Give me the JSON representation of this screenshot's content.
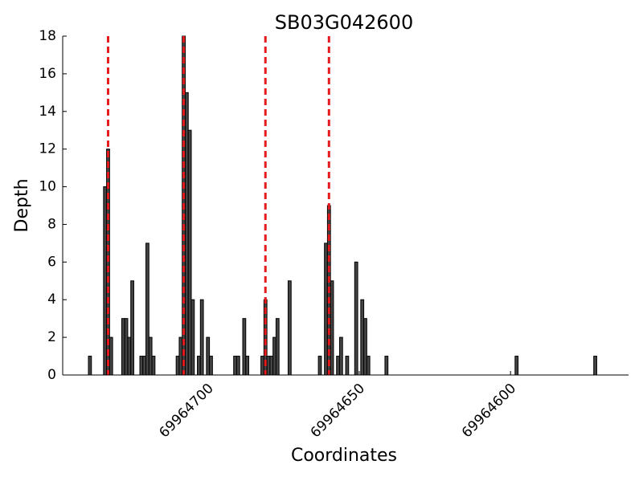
{
  "chart_data": {
    "type": "bar",
    "title": "SB03G042600",
    "x_label": "Coordinates",
    "y_label": "Depth",
    "x": [
      69964739,
      69964734,
      69964733,
      69964732,
      69964728,
      69964727,
      69964726,
      69964725,
      69964722,
      69964721,
      69964720,
      69964719,
      69964718,
      69964710,
      69964709,
      69964708,
      69964707,
      69964706,
      69964705,
      69964703,
      69964702,
      69964700,
      69964699,
      69964691,
      69964690,
      69964688,
      69964687,
      69964682,
      69964681,
      69964680,
      69964679,
      69964678,
      69964677,
      69964673,
      69964663,
      69964661,
      69964660,
      69964659,
      69964657,
      69964656,
      69964654,
      69964651,
      69964649,
      69964648,
      69964647,
      69964641,
      69964598,
      69964572
    ],
    "values": [
      1,
      10,
      12,
      2,
      3,
      3,
      2,
      5,
      1,
      1,
      7,
      2,
      1,
      1,
      2,
      18,
      15,
      13,
      4,
      1,
      4,
      2,
      1,
      1,
      1,
      3,
      1,
      1,
      4,
      1,
      1,
      2,
      3,
      5,
      1,
      7,
      9,
      5,
      1,
      2,
      1,
      6,
      4,
      3,
      1,
      1,
      1,
      1
    ],
    "color": "#444444",
    "vlines": [
      69964733,
      69964708,
      69964681,
      69964660
    ],
    "vline_color": "#e41a1c",
    "xlim": [
      69964748,
      69964561
    ],
    "xticks": [
      69964700,
      69964650,
      69964600
    ],
    "ylim": [
      0,
      18
    ],
    "yticks": [
      0,
      2,
      4,
      6,
      8,
      10,
      12,
      14,
      16,
      18
    ]
  }
}
